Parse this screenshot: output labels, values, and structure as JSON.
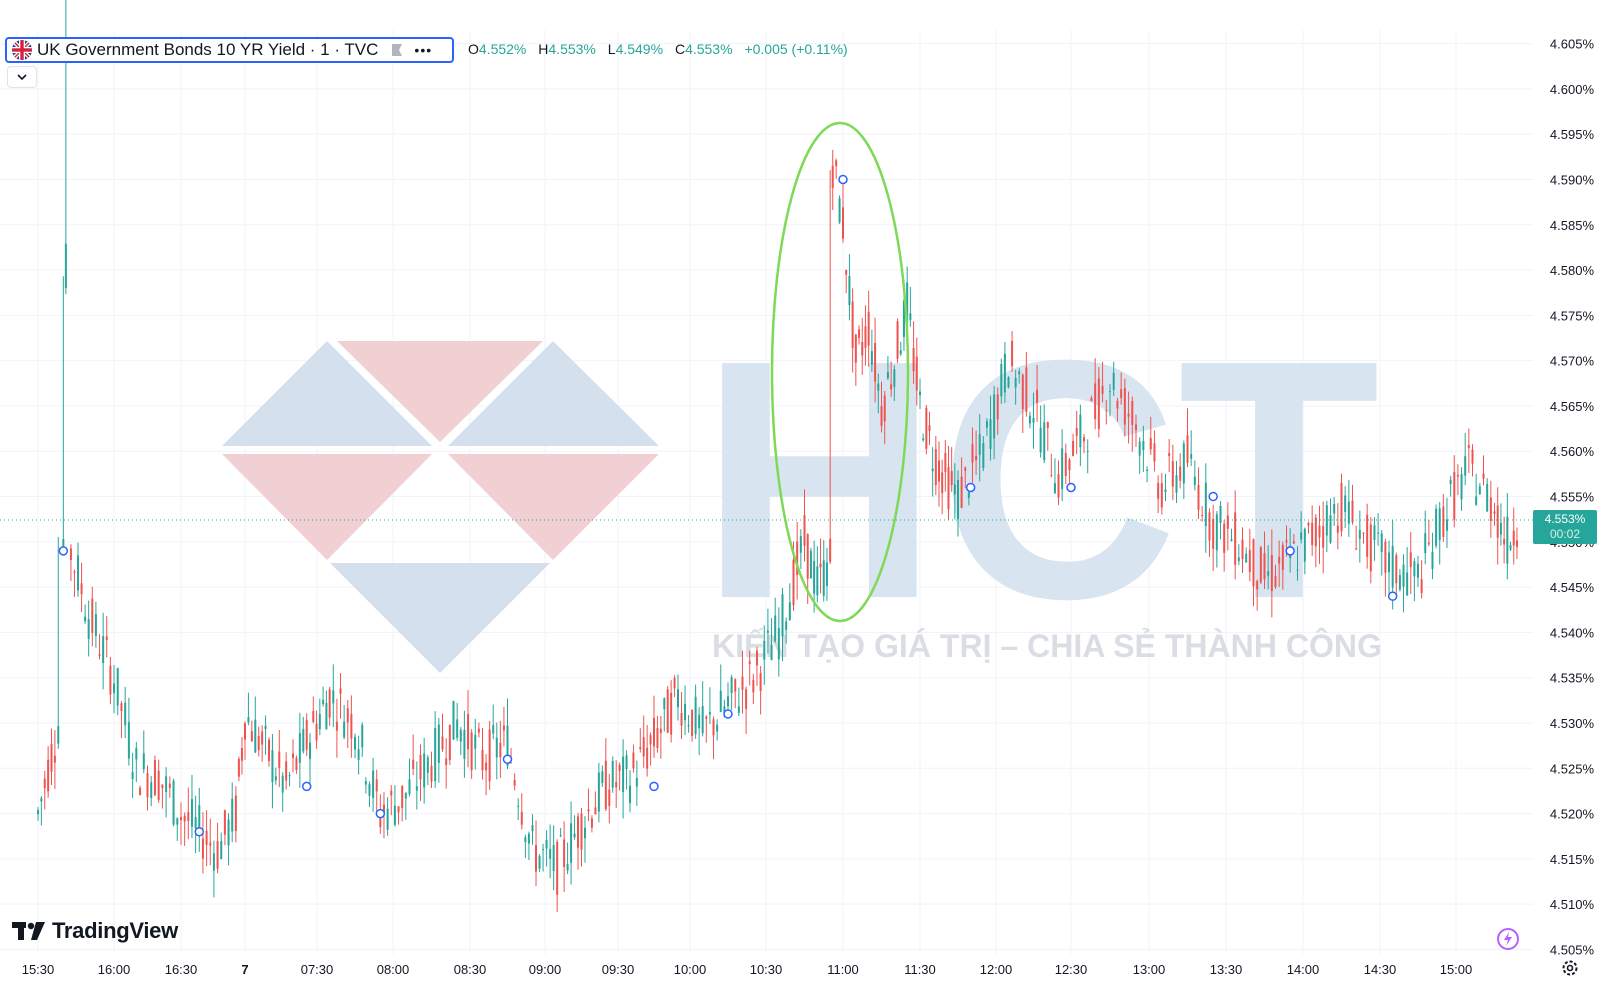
{
  "header": {
    "symbol_title": "UK Government Bonds 10 YR Yield · 1 · TVC",
    "more_label": "•••",
    "ohlc": {
      "o_key": "O",
      "o_val": "4.552%",
      "h_key": "H",
      "h_val": "4.553%",
      "l_key": "L",
      "l_val": "4.549%",
      "c_key": "C",
      "c_val": "4.553%",
      "change": "+0.005 (+0.11%)"
    }
  },
  "price_tag": {
    "price": "4.553%",
    "countdown": "00:02"
  },
  "branding": {
    "logo_text": "TradingView"
  },
  "watermark": {
    "letters": "HCT",
    "slogan": "KIẾN TẠO GIÁ TRỊ – CHIA SẺ THÀNH CÔNG"
  },
  "icons": {
    "flag": "uk-flag-icon",
    "flag_btn": "flag-marker-icon",
    "collapse": "chevron-down-icon",
    "bolt": "lightning-icon",
    "gear": "gear-icon"
  },
  "colors": {
    "up": "#26a69a",
    "down": "#ef5350",
    "highlight": "#7ed957",
    "accent": "#2962ff"
  },
  "chart_data": {
    "type": "candlestick",
    "title": "UK Government Bonds 10 YR Yield · 1 · TVC",
    "interval": "1 minute",
    "y_range": [
      4.5045,
      4.6065
    ],
    "y_ticks": [
      "4.605%",
      "4.600%",
      "4.595%",
      "4.590%",
      "4.585%",
      "4.580%",
      "4.575%",
      "4.570%",
      "4.565%",
      "4.560%",
      "4.555%",
      "4.550%",
      "4.545%",
      "4.540%",
      "4.535%",
      "4.530%",
      "4.525%",
      "4.520%",
      "4.515%",
      "4.510%",
      "4.505%"
    ],
    "x_ticks": [
      "15:30",
      "16:00",
      "16:30",
      "7",
      "07:30",
      "08:00",
      "08:30",
      "09:00",
      "09:30",
      "10:00",
      "10:30",
      "11:00",
      "11:30",
      "12:00",
      "12:30",
      "13:00",
      "13:30",
      "14:00",
      "14:30",
      "15:00"
    ],
    "last_price": 4.553,
    "grid": true,
    "annotation": "ellipse around 11:00 spike",
    "price_path": [
      [
        "15:20",
        4.52
      ],
      [
        "15:28",
        4.53
      ],
      [
        "15:30",
        4.55
      ],
      [
        "15:31",
        4.58
      ],
      [
        "15:33",
        4.549
      ],
      [
        "15:40",
        4.542
      ],
      [
        "15:50",
        4.535
      ],
      [
        "16:00",
        4.525
      ],
      [
        "16:10",
        4.524
      ],
      [
        "16:20",
        4.52
      ],
      [
        "16:30",
        4.518
      ],
      [
        "16:40",
        4.516
      ],
      [
        "16:50",
        4.52
      ],
      [
        "07:00",
        4.531
      ],
      [
        "07:10",
        4.527
      ],
      [
        "07:20",
        4.523
      ],
      [
        "07:30",
        4.528
      ],
      [
        "07:40",
        4.533
      ],
      [
        "07:50",
        4.53
      ],
      [
        "08:00",
        4.52
      ],
      [
        "08:10",
        4.522
      ],
      [
        "08:20",
        4.526
      ],
      [
        "08:30",
        4.53
      ],
      [
        "08:40",
        4.526
      ],
      [
        "08:50",
        4.528
      ],
      [
        "09:00",
        4.516
      ],
      [
        "09:10",
        4.514
      ],
      [
        "09:20",
        4.519
      ],
      [
        "09:30",
        4.523
      ],
      [
        "09:40",
        4.524
      ],
      [
        "09:50",
        4.528
      ],
      [
        "10:00",
        4.533
      ],
      [
        "10:10",
        4.529
      ],
      [
        "10:20",
        4.532
      ],
      [
        "10:30",
        4.535
      ],
      [
        "10:40",
        4.54
      ],
      [
        "10:50",
        4.55
      ],
      [
        "10:55",
        4.545
      ],
      [
        "11:00",
        4.548
      ],
      [
        "11:01",
        4.592
      ],
      [
        "11:05",
        4.585
      ],
      [
        "11:10",
        4.57
      ],
      [
        "11:15",
        4.574
      ],
      [
        "11:20",
        4.565
      ],
      [
        "11:25",
        4.57
      ],
      [
        "11:30",
        4.576
      ],
      [
        "11:35",
        4.565
      ],
      [
        "11:40",
        4.56
      ],
      [
        "11:45",
        4.557
      ],
      [
        "11:50",
        4.555
      ],
      [
        "12:00",
        4.56
      ],
      [
        "12:10",
        4.57
      ],
      [
        "12:20",
        4.565
      ],
      [
        "12:30",
        4.557
      ],
      [
        "12:40",
        4.562
      ],
      [
        "12:50",
        4.568
      ],
      [
        "13:00",
        4.563
      ],
      [
        "13:10",
        4.556
      ],
      [
        "13:20",
        4.559
      ],
      [
        "13:30",
        4.552
      ],
      [
        "13:40",
        4.55
      ],
      [
        "13:50",
        4.546
      ],
      [
        "14:00",
        4.548
      ],
      [
        "14:10",
        4.551
      ],
      [
        "14:20",
        4.554
      ],
      [
        "14:30",
        4.55
      ],
      [
        "14:40",
        4.547
      ],
      [
        "14:50",
        4.546
      ],
      [
        "15:00",
        4.553
      ],
      [
        "15:10",
        4.558
      ],
      [
        "15:20",
        4.554
      ],
      [
        "15:25",
        4.55
      ],
      [
        "15:30",
        4.553
      ]
    ],
    "markers": [
      [
        "15:30",
        4.549
      ],
      [
        "16:30",
        4.518
      ],
      [
        "07:30",
        4.523
      ],
      [
        "08:00",
        4.52
      ],
      [
        "08:50",
        4.526
      ],
      [
        "09:50",
        4.523
      ],
      [
        "10:20",
        4.531
      ],
      [
        "11:05",
        4.59
      ],
      [
        "11:55",
        4.556
      ],
      [
        "12:35",
        4.556
      ],
      [
        "13:30",
        4.555
      ],
      [
        "14:00",
        4.549
      ],
      [
        "14:40",
        4.544
      ]
    ]
  }
}
